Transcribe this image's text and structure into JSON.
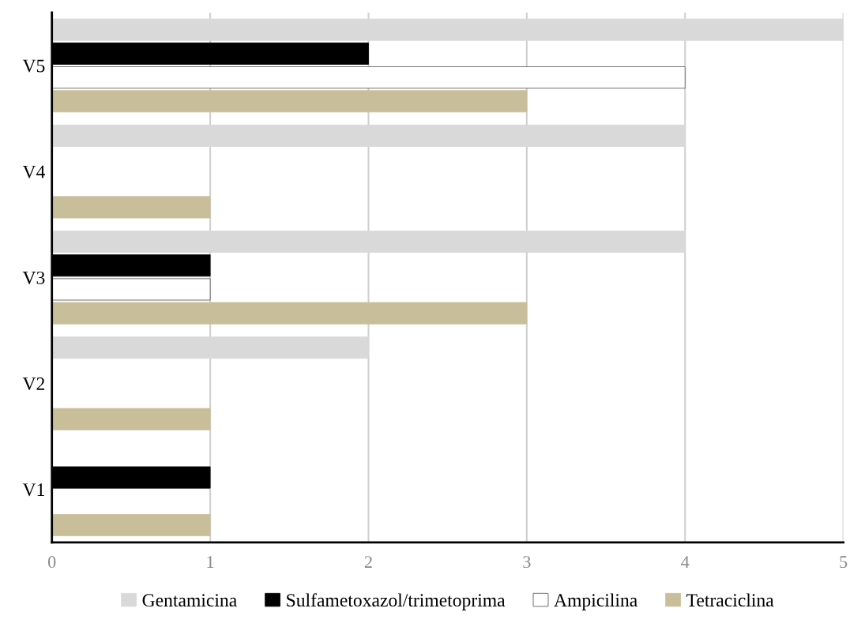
{
  "chart_data": {
    "type": "bar",
    "orientation": "horizontal",
    "categories": [
      "V5",
      "V4",
      "V3",
      "V2",
      "V1"
    ],
    "series": [
      {
        "name": "Gentamicina",
        "color": "#d9d9d9",
        "values": [
          5,
          4,
          4,
          2,
          0
        ]
      },
      {
        "name": "Sulfametoxazol/trimetoprima",
        "color": "#000000",
        "values": [
          2,
          0,
          1,
          0,
          1
        ]
      },
      {
        "name": "Ampicilina",
        "color": "#ffffff",
        "values": [
          4,
          0,
          1,
          0,
          0
        ]
      },
      {
        "name": "Tetraciclina",
        "color": "#c8bf9a",
        "values": [
          3,
          1,
          3,
          1,
          1
        ]
      }
    ],
    "xlim": [
      0,
      5
    ],
    "xticks": [
      0,
      1,
      2,
      3,
      4,
      5
    ],
    "grid": "x",
    "legend": "bottom"
  }
}
